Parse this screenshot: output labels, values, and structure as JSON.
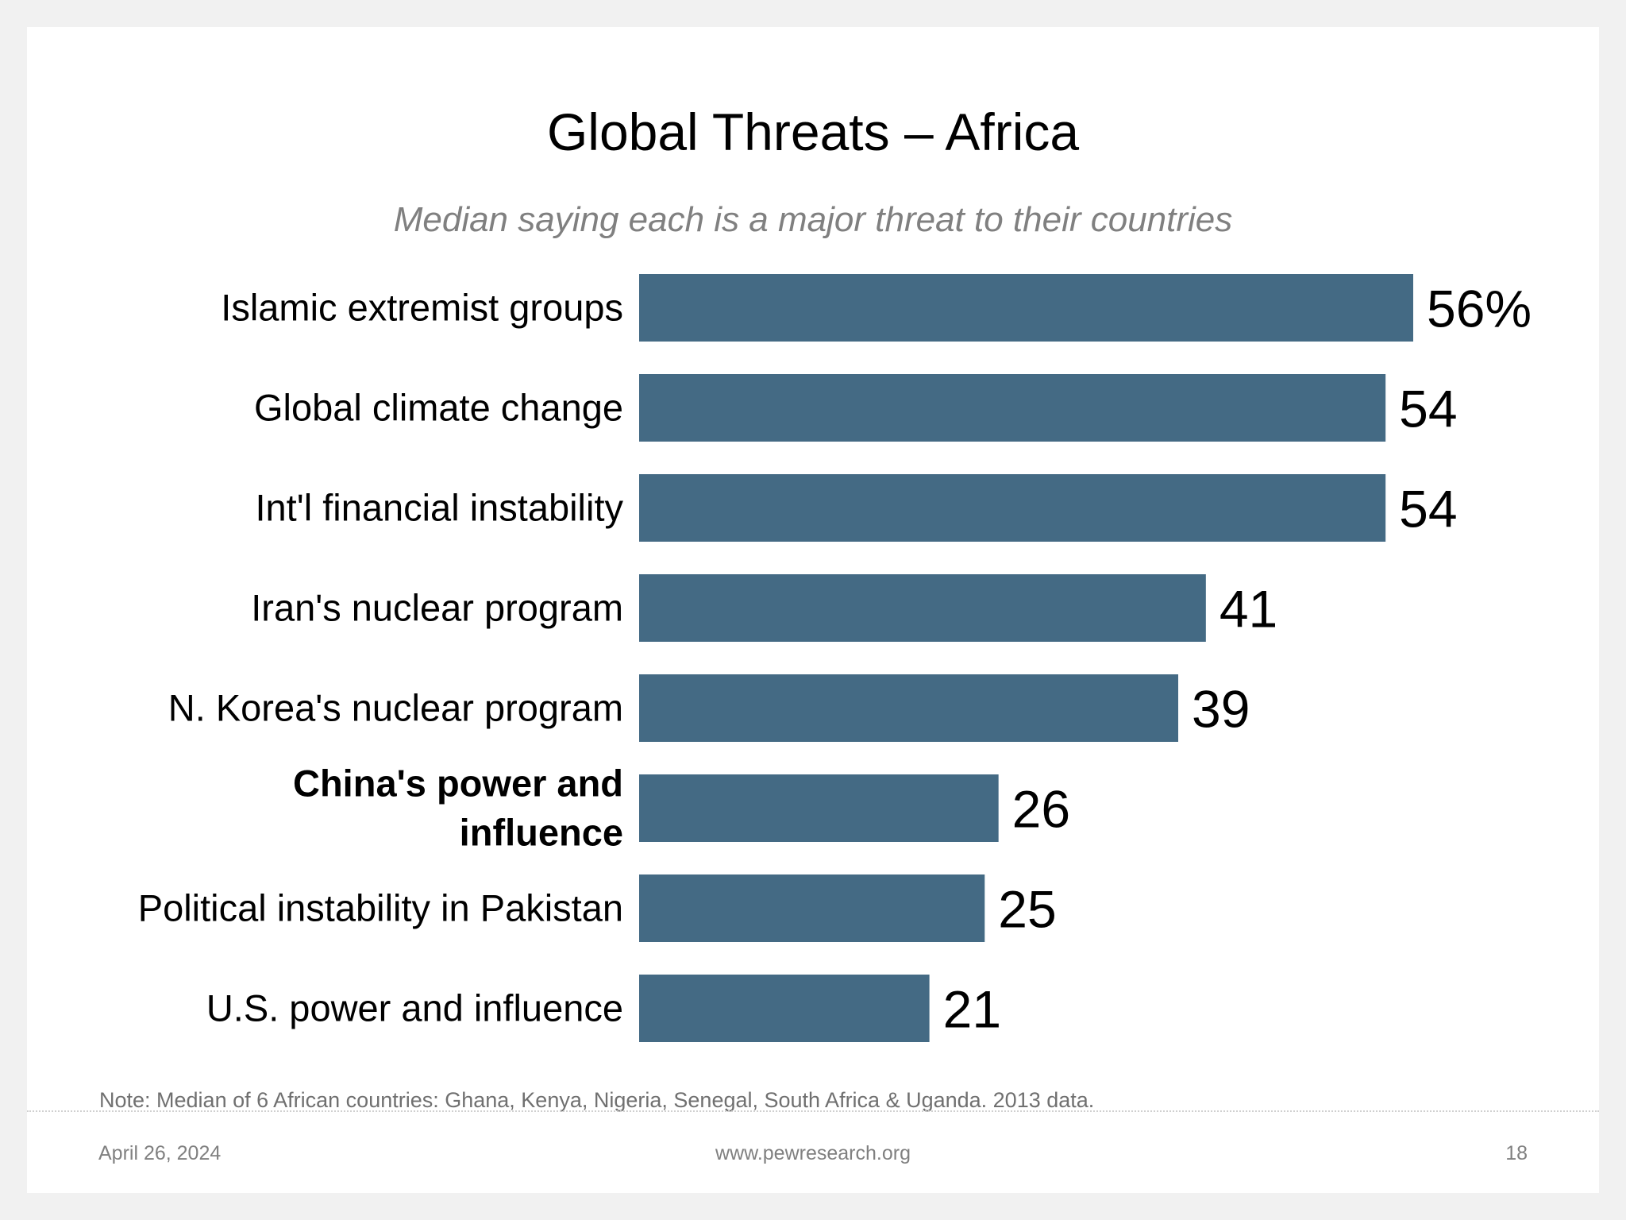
{
  "header": {
    "title": "Global Threats – Africa",
    "subtitle": "Median saying each is a major threat to their countries"
  },
  "chart_data": {
    "type": "bar",
    "orientation": "horizontal",
    "title": "Global Threats – Africa",
    "subtitle": "Median saying each is a major threat to their countries",
    "categories": [
      [
        "Islamic extremist groups"
      ],
      [
        "Global climate change"
      ],
      [
        "Int'l financial instability"
      ],
      [
        "Iran's nuclear program"
      ],
      [
        "N. Korea's nuclear program"
      ],
      [
        "China's power and",
        "influence"
      ],
      [
        "Political instability in Pakistan"
      ],
      [
        "U.S. power and influence"
      ]
    ],
    "values": [
      56,
      54,
      54,
      41,
      39,
      26,
      25,
      21
    ],
    "value_labels": [
      "56%",
      "54",
      "54",
      "41",
      "39",
      "26",
      "25",
      "21"
    ],
    "highlighted": [
      false,
      false,
      false,
      false,
      false,
      true,
      false,
      false
    ],
    "bar_color": "#446a84",
    "xlim": [
      0,
      60
    ],
    "xlabel": "",
    "ylabel": ""
  },
  "footer": {
    "note": "Note: Median of 6 African countries: Ghana, Kenya, Nigeria, Senegal, South Africa & Uganda. 2013 data.",
    "date": "April 26, 2024",
    "url": "www.pewresearch.org",
    "page": "18"
  }
}
